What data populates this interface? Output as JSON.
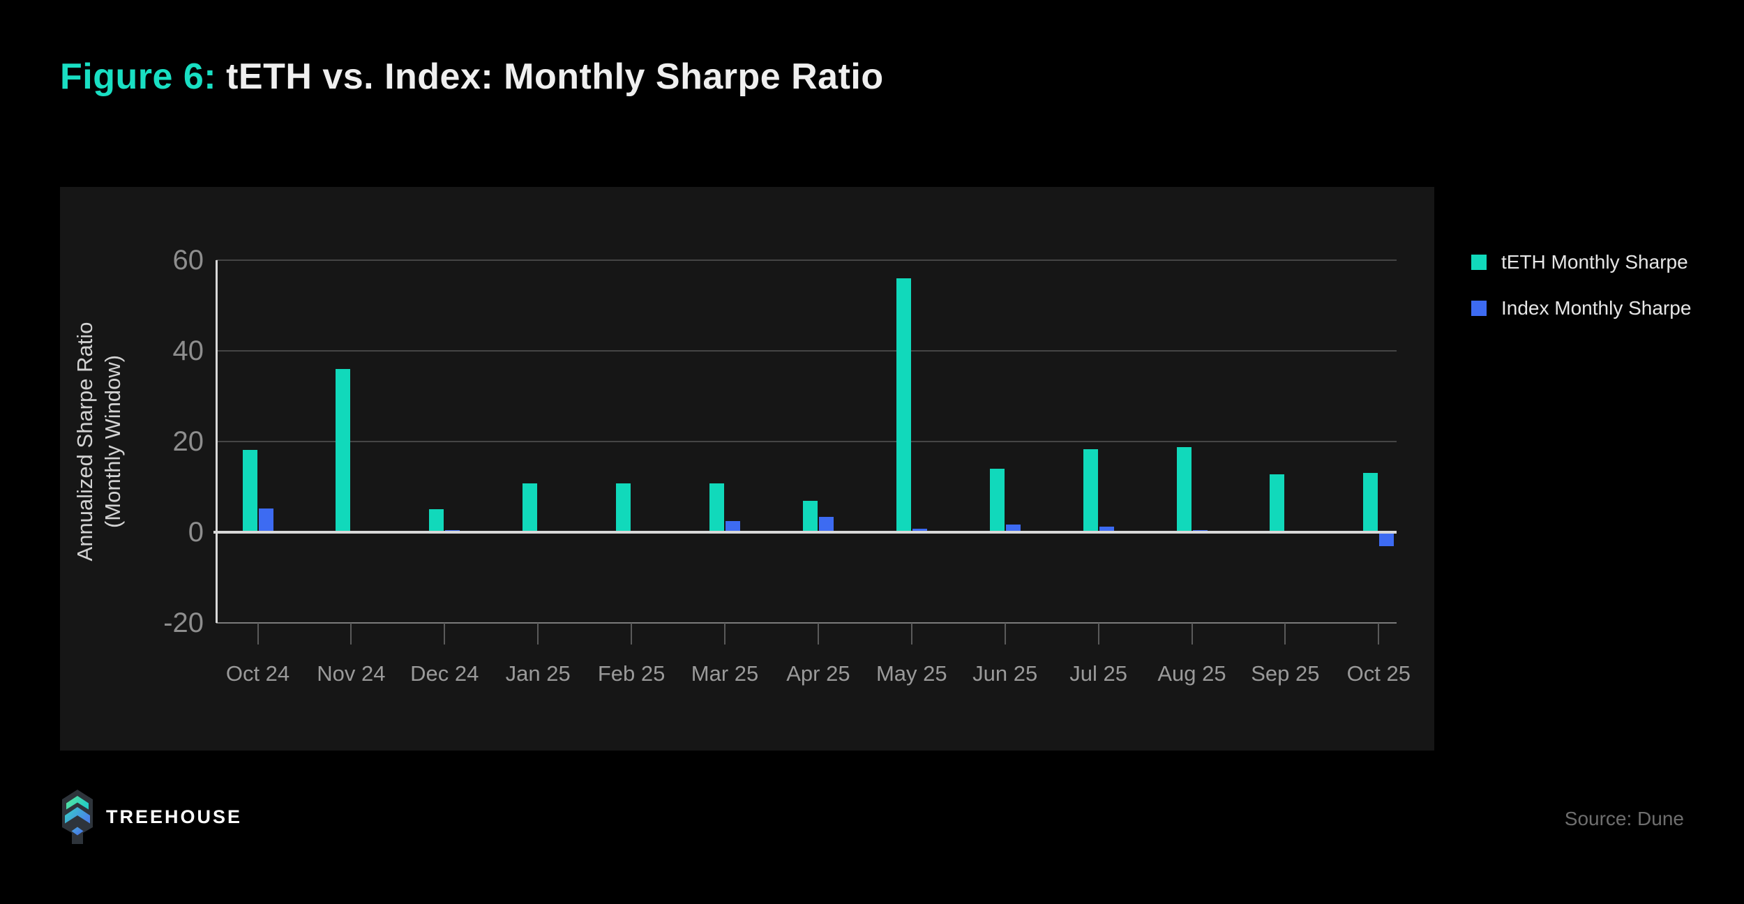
{
  "title": {
    "prefix": "Figure 6:",
    "main": "tETH vs. Index: Monthly Sharpe Ratio"
  },
  "footer": {
    "brand": "TREEHOUSE",
    "source": "Source: Dune"
  },
  "colors": {
    "accent_teal": "#11D9BB",
    "accent_blue": "#3D6BF2",
    "title_teal": "#19DFC3",
    "page_bg": "#000000",
    "card_bg": "#161616"
  },
  "chart_data": {
    "type": "bar",
    "title": "tETH vs. Index: Monthly Sharpe Ratio",
    "ylabel_lines": [
      "Annualized Sharpe Ratio",
      "(Monthly Window)"
    ],
    "xlabel": "",
    "categories": [
      "Oct 24",
      "Nov 24",
      "Dec 24",
      "Jan 25",
      "Feb 25",
      "Mar 25",
      "Apr 25",
      "May 25",
      "Jun 25",
      "Jul 25",
      "Aug 25",
      "Sep 25",
      "Oct 25"
    ],
    "series": [
      {
        "name": "tETH Monthly Sharpe",
        "color": "#11D9BB",
        "values": [
          18.1,
          36.0,
          5.1,
          10.8,
          10.8,
          10.8,
          6.9,
          56.0,
          14.0,
          18.3,
          18.7,
          12.7,
          13.1
        ]
      },
      {
        "name": "Index Monthly Sharpe",
        "color": "#3D6BF2",
        "values": [
          5.3,
          0.3,
          0.5,
          0.1,
          0.1,
          2.5,
          3.4,
          0.7,
          1.7,
          1.3,
          0.5,
          0.3,
          -2.7
        ]
      }
    ],
    "ylim": [
      -20,
      60
    ],
    "yticks": [
      60,
      40,
      20,
      0,
      -20
    ],
    "grid": "horizontal",
    "legend_position": "right"
  }
}
